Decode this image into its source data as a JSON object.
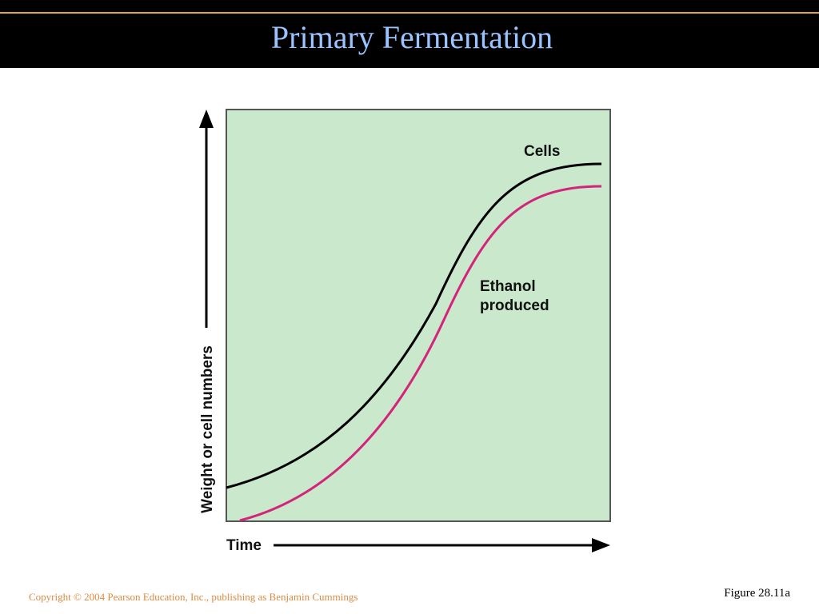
{
  "header": {
    "title": "Primary Fermentation"
  },
  "figure": {
    "y_axis_label": "Weight or cell numbers",
    "x_axis_label": "Time",
    "curves": [
      {
        "label_lines": [
          "Cells"
        ]
      },
      {
        "label_lines": [
          "Ethanol",
          "produced"
        ]
      }
    ]
  },
  "footer": {
    "copyright": "Copyright © 2004 Pearson Education, Inc., publishing as Benjamin Cummings",
    "figure_ref": "Figure 28.11a"
  }
}
